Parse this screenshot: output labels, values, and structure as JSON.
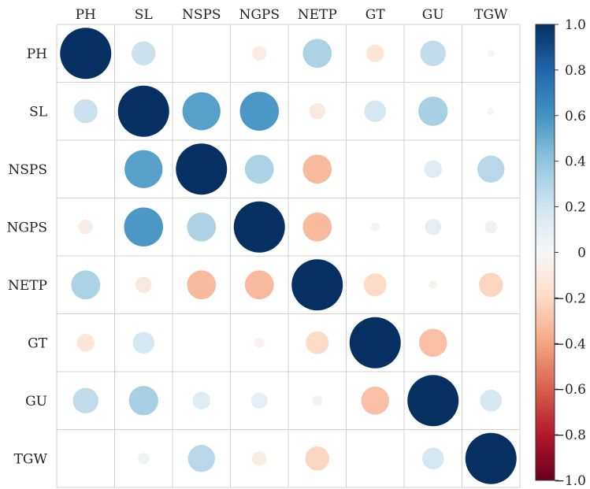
{
  "chart_data": {
    "type": "heatmap",
    "title": "",
    "variables": [
      "PH",
      "SL",
      "NSPS",
      "NGPS",
      "NETP",
      "GT",
      "GU",
      "TGW"
    ],
    "matrix": [
      [
        1.0,
        0.22,
        0.0,
        -0.08,
        0.32,
        -0.12,
        0.25,
        0.02
      ],
      [
        0.22,
        1.0,
        0.55,
        0.58,
        -0.1,
        0.18,
        0.33,
        0.02
      ],
      [
        0.0,
        0.55,
        1.0,
        0.32,
        -0.32,
        0.0,
        0.12,
        0.28
      ],
      [
        -0.08,
        0.58,
        0.32,
        1.0,
        -0.32,
        -0.03,
        0.1,
        -0.06
      ],
      [
        0.32,
        -0.1,
        -0.32,
        -0.32,
        1.0,
        -0.2,
        -0.03,
        -0.22
      ],
      [
        -0.12,
        0.18,
        0.0,
        -0.04,
        -0.2,
        1.0,
        -0.3,
        0.0
      ],
      [
        0.25,
        0.33,
        0.12,
        0.1,
        -0.04,
        -0.3,
        1.0,
        0.18
      ],
      [
        0.0,
        0.05,
        0.28,
        -0.08,
        -0.22,
        0.0,
        0.18,
        1.0
      ]
    ],
    "colorbar": {
      "range": [
        -1.0,
        1.0
      ],
      "ticks": [
        1.0,
        0.8,
        0.6,
        0.4,
        0.2,
        0,
        -0.2,
        -0.4,
        -0.6,
        -0.8,
        -1.0
      ],
      "tick_labels": [
        "1.0",
        "0.8",
        "0.6",
        "0.4",
        "0.2",
        "0",
        "−0.2",
        "−0.4",
        "−0.6",
        "−0.8",
        "−1.0"
      ],
      "colormap": "RdBu",
      "colors": [
        "#67001f",
        "#b2182b",
        "#d6604d",
        "#f4a582",
        "#fddbc7",
        "#f7f7f7",
        "#d1e5f0",
        "#92c5de",
        "#4393c3",
        "#2166ac",
        "#053061"
      ]
    },
    "marker": "circle sized by |r|",
    "grid": true
  }
}
